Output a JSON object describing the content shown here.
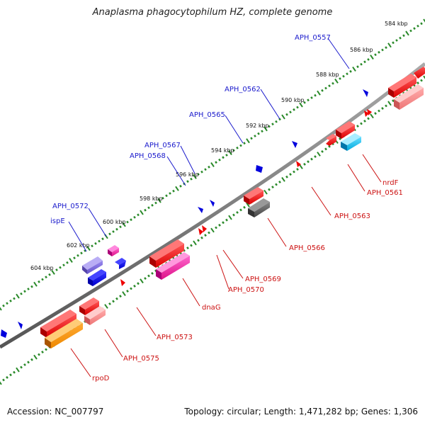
{
  "title": "Anaplasma phagocytophilum HZ, complete genome",
  "footer": {
    "accession": "Accession: NC_007797",
    "summary": "Topology: circular; Length: 1,471,282 bp; Genes: 1,306"
  },
  "colors": {
    "backbone": "#8a8a8a",
    "tick_track": "#2a8a2a",
    "top_label": "#1a1acc",
    "bottom_label": "#cc1111"
  },
  "scale_labels": [
    "584 kbp",
    "586 kbp",
    "588 kbp",
    "590 kbp",
    "592 kbp",
    "594 kbp",
    "596 kbp",
    "598 kbp",
    "600 kbp",
    "602 kbp",
    "604 kbp"
  ],
  "top_gene_labels": [
    "APH_0557",
    "APH_0562",
    "APH_0565",
    "APH_0567",
    "APH_0568",
    "APH_0572",
    "ispE"
  ],
  "bottom_gene_labels": [
    "nrdF",
    "APH_0561",
    "APH_0563",
    "APH_0566",
    "APH_0569",
    "APH_0570",
    "dnaG",
    "APH_0573",
    "APH_0575",
    "rpoD"
  ]
}
